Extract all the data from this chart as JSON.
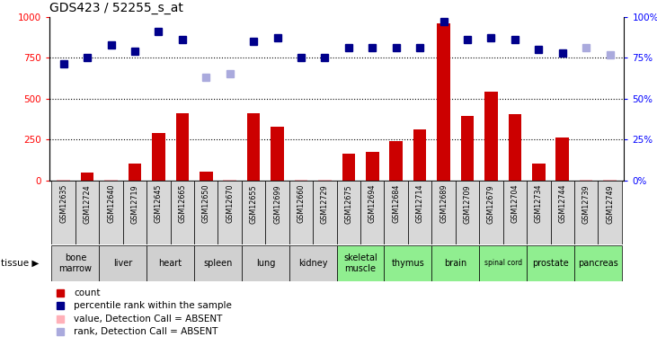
{
  "title": "GDS423 / 52255_s_at",
  "samples": [
    "GSM12635",
    "GSM12724",
    "GSM12640",
    "GSM12719",
    "GSM12645",
    "GSM12665",
    "GSM12650",
    "GSM12670",
    "GSM12655",
    "GSM12699",
    "GSM12660",
    "GSM12729",
    "GSM12675",
    "GSM12694",
    "GSM12684",
    "GSM12714",
    "GSM12689",
    "GSM12709",
    "GSM12679",
    "GSM12704",
    "GSM12734",
    "GSM12744",
    "GSM12739",
    "GSM12749"
  ],
  "count_values": [
    5,
    50,
    5,
    100,
    290,
    410,
    55,
    5,
    410,
    330,
    5,
    5,
    165,
    175,
    240,
    310,
    960,
    395,
    540,
    405,
    100,
    260,
    5,
    5
  ],
  "count_absent": [
    true,
    false,
    true,
    false,
    false,
    false,
    false,
    true,
    false,
    false,
    true,
    true,
    false,
    false,
    false,
    false,
    false,
    false,
    false,
    false,
    false,
    false,
    true,
    true
  ],
  "rank_values": [
    71,
    75,
    83,
    79,
    91,
    86,
    63,
    65,
    85,
    87,
    75,
    75,
    81,
    81,
    81,
    81,
    97,
    86,
    87,
    86,
    80,
    78,
    81,
    77
  ],
  "rank_absent": [
    false,
    false,
    false,
    false,
    false,
    false,
    true,
    true,
    false,
    false,
    false,
    false,
    false,
    false,
    false,
    false,
    false,
    false,
    false,
    false,
    false,
    false,
    true,
    true
  ],
  "tissues": [
    {
      "name": "bone\nmarrow",
      "start": 0,
      "end": 1,
      "color": "#d0d0d0"
    },
    {
      "name": "liver",
      "start": 2,
      "end": 3,
      "color": "#d0d0d0"
    },
    {
      "name": "heart",
      "start": 4,
      "end": 5,
      "color": "#d0d0d0"
    },
    {
      "name": "spleen",
      "start": 6,
      "end": 7,
      "color": "#d0d0d0"
    },
    {
      "name": "lung",
      "start": 8,
      "end": 9,
      "color": "#d0d0d0"
    },
    {
      "name": "kidney",
      "start": 10,
      "end": 11,
      "color": "#d0d0d0"
    },
    {
      "name": "skeletal\nmuscle",
      "start": 12,
      "end": 13,
      "color": "#90ee90"
    },
    {
      "name": "thymus",
      "start": 14,
      "end": 15,
      "color": "#90ee90"
    },
    {
      "name": "brain",
      "start": 16,
      "end": 17,
      "color": "#90ee90"
    },
    {
      "name": "spinal cord",
      "start": 18,
      "end": 19,
      "color": "#90ee90"
    },
    {
      "name": "prostate",
      "start": 20,
      "end": 21,
      "color": "#90ee90"
    },
    {
      "name": "pancreas",
      "start": 22,
      "end": 23,
      "color": "#90ee90"
    }
  ],
  "yticks_left": [
    0,
    250,
    500,
    750,
    1000
  ],
  "yticks_right": [
    0,
    25,
    50,
    75,
    100
  ],
  "bar_color_present": "#cc0000",
  "bar_color_absent": "#ffb0b8",
  "rank_color_present": "#00008b",
  "rank_color_absent": "#aaaadd",
  "hline_values": [
    250,
    500,
    750
  ],
  "bar_width": 0.55,
  "legend_items": [
    {
      "color": "#cc0000",
      "label": "count"
    },
    {
      "color": "#00008b",
      "label": "percentile rank within the sample"
    },
    {
      "color": "#ffb0b8",
      "label": "value, Detection Call = ABSENT"
    },
    {
      "color": "#aaaadd",
      "label": "rank, Detection Call = ABSENT"
    }
  ]
}
